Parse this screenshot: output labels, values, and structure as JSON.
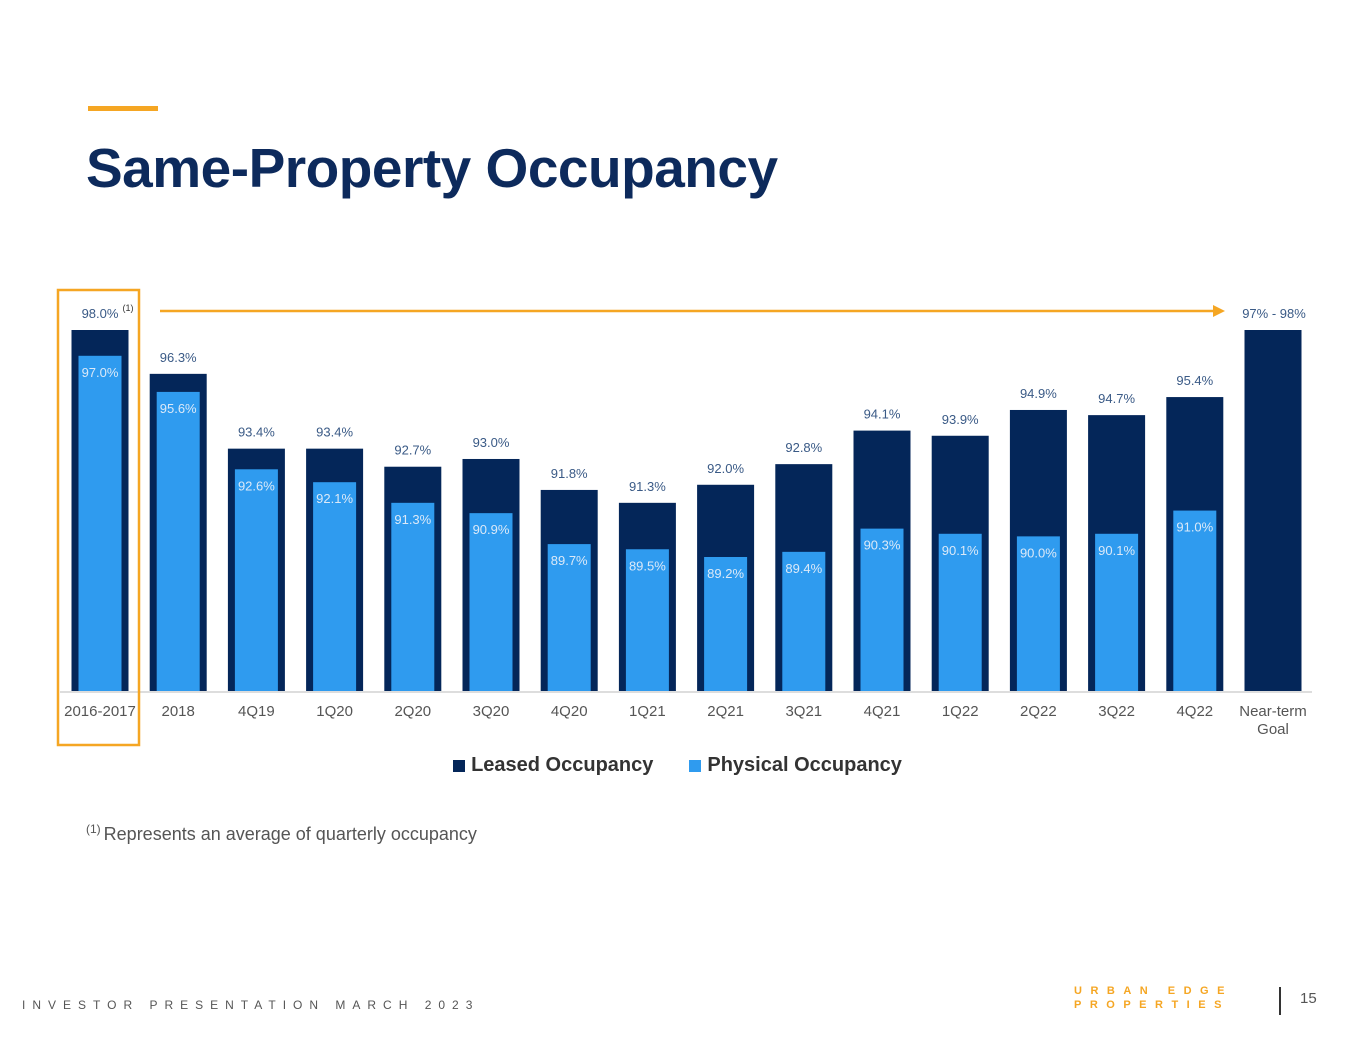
{
  "header": {
    "title": "Same-Property Occupancy"
  },
  "chart_data": {
    "type": "bar",
    "categories": [
      "2016-2017",
      "2018",
      "4Q19",
      "1Q20",
      "2Q20",
      "3Q20",
      "4Q20",
      "1Q21",
      "2Q21",
      "3Q21",
      "4Q21",
      "1Q22",
      "2Q22",
      "3Q22",
      "4Q22",
      "Near-term\nGoal"
    ],
    "series": [
      {
        "name": "Leased Occupancy",
        "color": "#042659",
        "values": [
          98.0,
          96.3,
          93.4,
          93.4,
          92.7,
          93.0,
          91.8,
          91.3,
          92.0,
          92.8,
          94.1,
          93.9,
          94.9,
          94.7,
          95.4,
          98.0
        ],
        "labels": [
          "98.0%",
          "96.3%",
          "93.4%",
          "93.4%",
          "92.7%",
          "93.0%",
          "91.8%",
          "91.3%",
          "92.0%",
          "92.8%",
          "94.1%",
          "93.9%",
          "94.9%",
          "94.7%",
          "95.4%",
          "97% - 98%"
        ]
      },
      {
        "name": "Physical Occupancy",
        "color": "#2f9bef",
        "values": [
          97.0,
          95.6,
          92.6,
          92.1,
          91.3,
          90.9,
          89.7,
          89.5,
          89.2,
          89.4,
          90.3,
          90.1,
          90.0,
          90.1,
          91.0,
          null
        ],
        "labels": [
          "97.0%",
          "95.6%",
          "92.6%",
          "92.1%",
          "91.3%",
          "90.9%",
          "89.7%",
          "89.5%",
          "89.2%",
          "89.4%",
          "90.3%",
          "90.1%",
          "90.0%",
          "90.1%",
          "91.0%",
          ""
        ]
      }
    ],
    "ylim": [
      0,
      100
    ],
    "title": "",
    "xlabel": "",
    "ylabel": "",
    "annotations": {
      "first_bar_superscript": "(1)"
    },
    "colors": {
      "label": "#3a5a86",
      "axis": "#dddddd",
      "tick": "#555555",
      "highlight": "#f5a623"
    }
  },
  "footnote": {
    "marker": "(1)",
    "text": "Represents an average of quarterly occupancy"
  },
  "footer": {
    "presentation": "INVESTOR PRESENTATION MARCH 2023",
    "page_number": "15"
  },
  "logo": {
    "line1": "URBAN EDGE",
    "line2": "PROPERTIES"
  }
}
